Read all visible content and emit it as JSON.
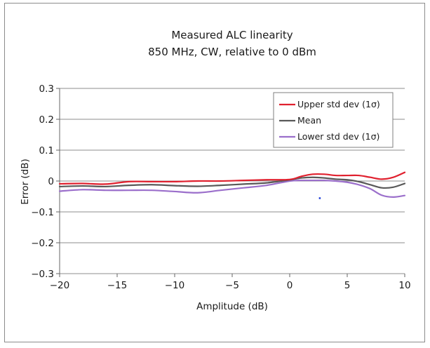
{
  "chart_data": {
    "type": "line",
    "title": "Measured  ALC linearity",
    "subtitle": "850 MHz, CW, relative  to 0 dBm",
    "xlabel": "Amplitude (dB)",
    "ylabel": "Error (dB)",
    "xlim": [
      -20,
      10
    ],
    "ylim": [
      -0.3,
      0.3
    ],
    "xticks": [
      -20,
      -15,
      -10,
      -5,
      0,
      5,
      10
    ],
    "xtick_labels": [
      "−20",
      "−15",
      "−10",
      "−5",
      "0",
      "5",
      "10"
    ],
    "yticks": [
      0.3,
      0.2,
      0.1,
      0,
      -0.1,
      -0.2,
      -0.3
    ],
    "ytick_labels": [
      "0.3",
      "0.2",
      "0.1",
      "0",
      "−0.1",
      "−0.2",
      "−0.3"
    ],
    "grid": "horizontal",
    "legend_position": "top-right",
    "series": [
      {
        "name": "Upper std dev (1σ)",
        "color": "#e0212f",
        "x": [
          -20,
          -18,
          -16,
          -14,
          -12,
          -10,
          -8,
          -6,
          -4,
          -2,
          0,
          1,
          2,
          3,
          4,
          5,
          6,
          7,
          8,
          9,
          10
        ],
        "y": [
          -0.009,
          -0.008,
          -0.01,
          -0.002,
          -0.002,
          -0.002,
          0.0,
          0.0,
          0.002,
          0.004,
          0.005,
          0.015,
          0.022,
          0.022,
          0.018,
          0.018,
          0.018,
          0.012,
          0.006,
          0.012,
          0.028
        ]
      },
      {
        "name": "Mean",
        "color": "#595959",
        "x": [
          -20,
          -18,
          -16,
          -14,
          -12,
          -10,
          -8,
          -6,
          -4,
          -2,
          0,
          1,
          2,
          3,
          4,
          5,
          6,
          7,
          8,
          9,
          10
        ],
        "y": [
          -0.018,
          -0.016,
          -0.018,
          -0.014,
          -0.012,
          -0.015,
          -0.017,
          -0.014,
          -0.01,
          -0.006,
          0.004,
          0.01,
          0.012,
          0.01,
          0.006,
          0.004,
          -0.002,
          -0.012,
          -0.022,
          -0.02,
          -0.008
        ]
      },
      {
        "name": "Lower std dev (1σ)",
        "color": "#9b6fcb",
        "x": [
          -20,
          -18,
          -16,
          -14,
          -12,
          -10,
          -8,
          -6,
          -4,
          -2,
          0,
          1,
          2,
          3,
          4,
          5,
          6,
          7,
          8,
          9,
          10
        ],
        "y": [
          -0.033,
          -0.028,
          -0.03,
          -0.03,
          -0.03,
          -0.034,
          -0.038,
          -0.03,
          -0.022,
          -0.014,
          0.0,
          0.002,
          0.002,
          0.002,
          0.0,
          -0.004,
          -0.012,
          -0.025,
          -0.046,
          -0.052,
          -0.047
        ]
      }
    ],
    "annotation_point": {
      "x": 2.6,
      "y": -0.055,
      "color": "#1f3fd8"
    }
  }
}
